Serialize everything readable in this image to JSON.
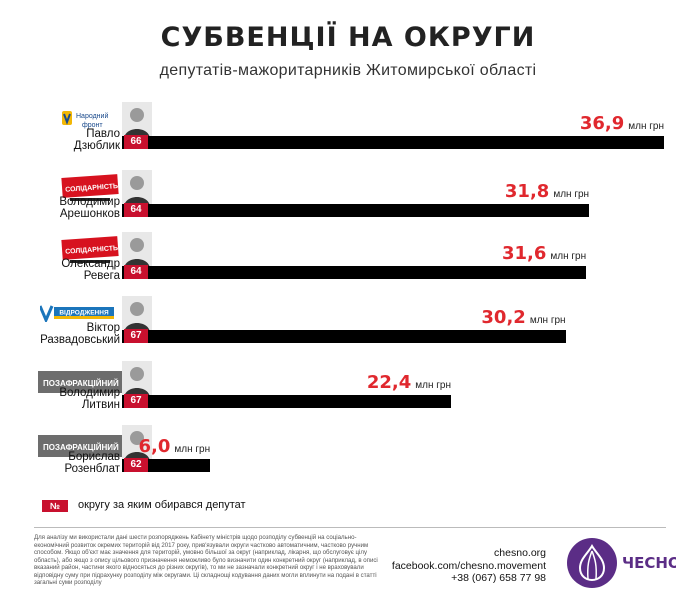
{
  "title": "СУБВЕНЦІЇ НА ОКРУГИ",
  "subtitle": "депутатів-мажоритарників Житомирської області",
  "colors": {
    "accent": "#e0282e",
    "district_badge": "#c8102e",
    "bar": "#000000"
  },
  "chart_data": {
    "type": "bar",
    "orientation": "horizontal",
    "unit": "млн грн",
    "categories": [
      "Павло Дзюблик",
      "Володимир Арешонков",
      "Олександр Ревега",
      "Віктор Развадовський",
      "Володимир Литвин",
      "Борислав Розенблат"
    ],
    "values": [
      36.9,
      31.8,
      31.6,
      30.2,
      22.4,
      6.0
    ],
    "value_labels": [
      "36,9",
      "31,8",
      "31,6",
      "30,2",
      "22,4",
      "6,0"
    ],
    "xlim": [
      0,
      36.9
    ],
    "grid": false,
    "legend": "bottom-left"
  },
  "deputies": [
    {
      "first_name": "Павло",
      "last_name": "Дзюблик",
      "district": "66",
      "party": "Народний фронт",
      "party_logo_icon": "people-front-logo-icon"
    },
    {
      "first_name": "Володимир",
      "last_name": "Арешонков",
      "district": "64",
      "party": "СОЛІДАРНІСТЬ",
      "party_logo_icon": "solidarity-logo-icon"
    },
    {
      "first_name": "Олександр",
      "last_name": "Ревега",
      "district": "64",
      "party": "СОЛІДАРНІСТЬ",
      "party_logo_icon": "solidarity-logo-icon"
    },
    {
      "first_name": "Віктор",
      "last_name": "Развадовський",
      "district": "67",
      "party": "ВІДРОДЖЕННЯ",
      "party_logo_icon": "revival-logo-icon"
    },
    {
      "first_name": "Володимир",
      "last_name": "Литвин",
      "district": "67",
      "party": "ПОЗАФРАКЦІЙНИЙ",
      "party_logo_icon": "non-faction-badge"
    },
    {
      "first_name": "Борислав",
      "last_name": "Розенблат",
      "district": "62",
      "party": "ПОЗАФРАКЦІЙНИЙ",
      "party_logo_icon": "non-faction-badge"
    }
  ],
  "legend": {
    "badge": "№",
    "text": "округу за яким обирався депутат"
  },
  "footnote": "Для аналізу ми використали дані шести розпоряджень Кабінету міністрів щодо розподілу субвенцій на соціально-економічний розвиток окремих територій від 2017 року, прив'язували округи частково автоматичним, частково ручним способом. Якщо об'єкт має значення для територій, умовно більшої за округ (наприклад, лікарня, що обслуговує цілу область), або якщо з опису цільового призначення неможливо було визначити один конкретний округ (наприклад, в описі вказаний район, частини якого відносяться до різних округів), то ми не зазначали конкретний округ і не враховували відповідну суму при підрахунку розподілу між округами. Ці складнощі кодування даних могли вплинути на подані в статті загальні суми розподілу",
  "contacts": {
    "site": "chesno.org",
    "facebook": "facebook.com/chesno.movement",
    "phone": "+38 (067) 658 77 98"
  },
  "brand": {
    "name": "ЧЕСНО",
    "logo_icon": "garlic-logo-icon",
    "color": "#5b2d86"
  }
}
